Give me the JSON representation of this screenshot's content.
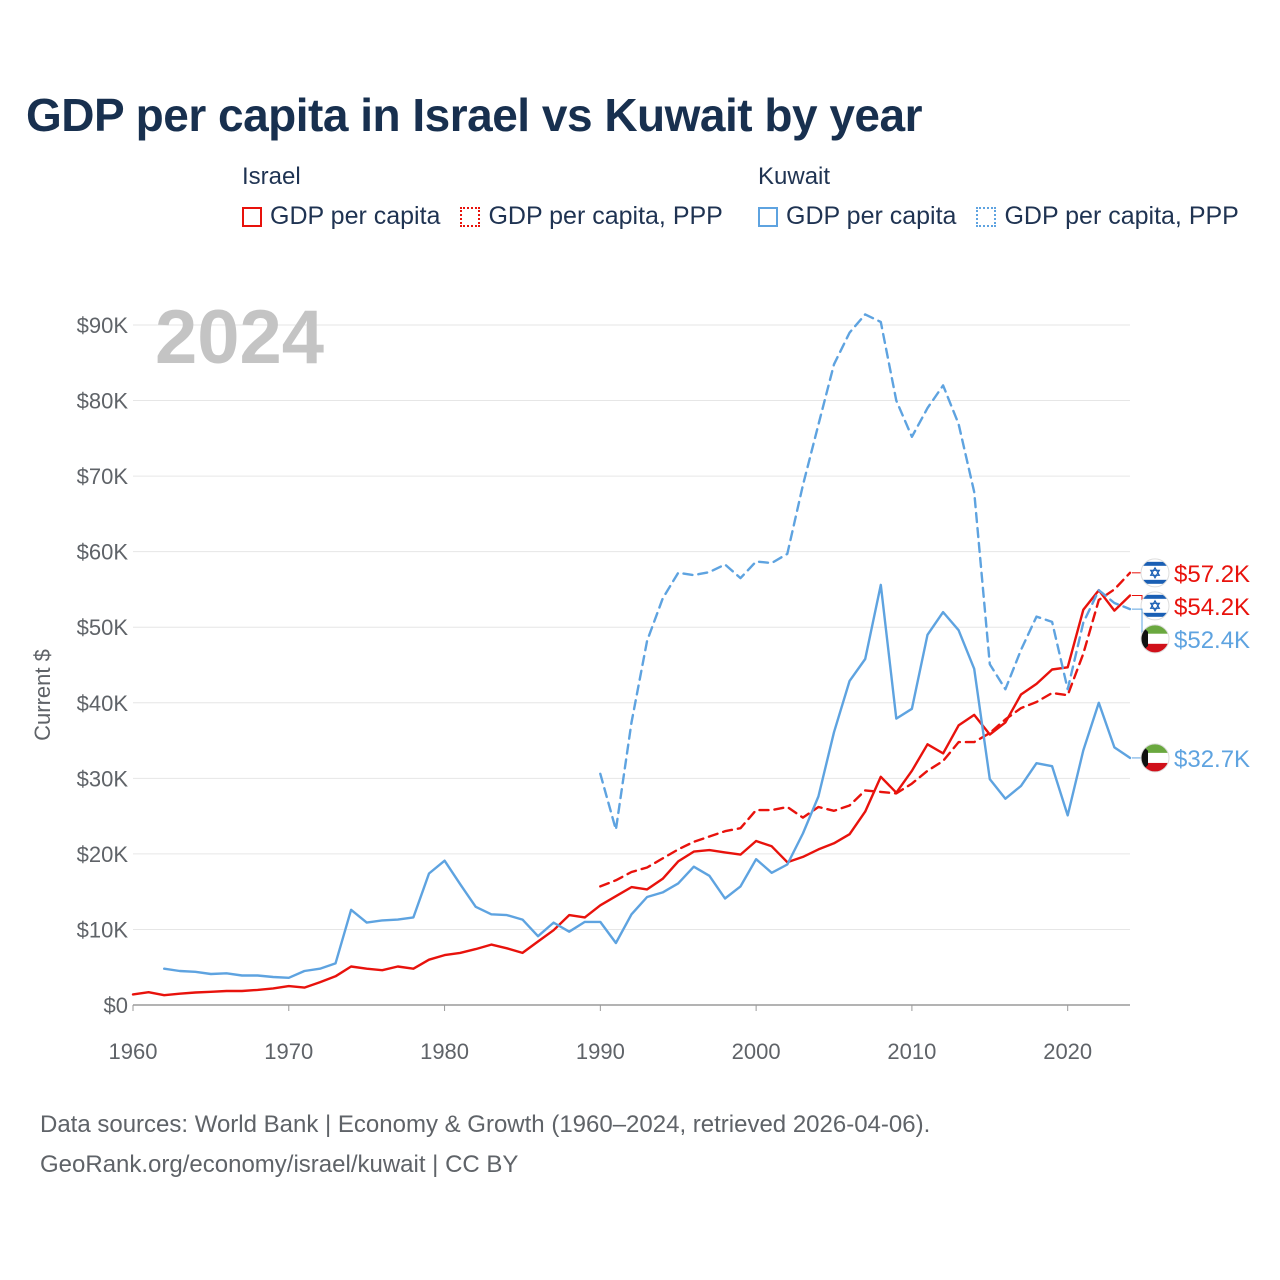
{
  "title": "GDP per capita in Israel vs Kuwait by year",
  "legend": {
    "israel": {
      "title": "Israel",
      "items": [
        {
          "label": "GDP per capita",
          "color": "#e8120c",
          "style": "solid"
        },
        {
          "label": "GDP per capita, PPP",
          "color": "#e8120c",
          "style": "dotted"
        }
      ]
    },
    "kuwait": {
      "title": "Kuwait",
      "items": [
        {
          "label": "GDP per capita",
          "color": "#5ea3e0",
          "style": "solid"
        },
        {
          "label": "GDP per capita, PPP",
          "color": "#5ea3e0",
          "style": "dotted"
        }
      ]
    }
  },
  "footer": {
    "line1": "Data sources: World Bank | Economy & Growth (1960–2024, retrieved 2026-04-06).",
    "line2": "GeoRank.org/economy/israel/kuwait | CC BY"
  },
  "chart_data": {
    "type": "line",
    "year_label": "2024",
    "ylabel": "Current $",
    "xlabel": "",
    "xlim": [
      1960,
      2024
    ],
    "ylim": [
      0,
      90000
    ],
    "x_ticks": [
      "1960",
      "1970",
      "1980",
      "1990",
      "2000",
      "2010",
      "2020"
    ],
    "y_ticks": [
      "$0",
      "$10K",
      "$20K",
      "$30K",
      "$40K",
      "$50K",
      "$60K",
      "$70K",
      "$80K",
      "$90K"
    ],
    "series": [
      {
        "name": "Israel GDP per capita",
        "color": "#e8120c",
        "dashed": false,
        "start_year": 1960,
        "values": [
          1400,
          1700,
          1300,
          1500,
          1650,
          1750,
          1850,
          1850,
          2000,
          2200,
          2500,
          2300,
          3000,
          3800,
          5100,
          4800,
          4600,
          5100,
          4800,
          6000,
          6600,
          6900,
          7400,
          8000,
          7500,
          6900,
          8400,
          9900,
          11900,
          11600,
          13200,
          14400,
          15600,
          15300,
          16700,
          19000,
          20300,
          20500,
          20200,
          19900,
          21700,
          21000,
          18900,
          19600,
          20600,
          21400,
          22600,
          25600,
          30200,
          28100,
          31000,
          34500,
          33300,
          37000,
          38400,
          35800,
          37400,
          41100,
          42500,
          44400,
          44700,
          52300,
          54900,
          52200,
          54200
        ],
        "end_label": "$54.2K",
        "flag": "israel"
      },
      {
        "name": "Israel GDP per capita, PPP",
        "color": "#e8120c",
        "dashed": true,
        "start_year": 1990,
        "values": [
          15700,
          16500,
          17600,
          18200,
          19400,
          20600,
          21600,
          22300,
          23000,
          23400,
          25800,
          25800,
          26200,
          24800,
          26200,
          25700,
          26400,
          28400,
          28200,
          28000,
          29300,
          31000,
          32300,
          34800,
          34800,
          36000,
          37800,
          39300,
          40100,
          41300,
          41000,
          46500,
          53600,
          55000,
          57200
        ],
        "end_label": "$57.2K",
        "flag": "israel"
      },
      {
        "name": "Kuwait GDP per capita",
        "color": "#5ea3e0",
        "dashed": false,
        "start_year": 1962,
        "values": [
          4800,
          4500,
          4400,
          4100,
          4200,
          3900,
          3900,
          3700,
          3600,
          4500,
          4800,
          5500,
          12600,
          10900,
          11200,
          11300,
          11600,
          17400,
          19100,
          16000,
          13000,
          12000,
          11900,
          11300,
          9100,
          10900,
          9700,
          11000,
          11000,
          8200,
          12000,
          14300,
          14900,
          16100,
          18300,
          17100,
          14100,
          15700,
          19300,
          17500,
          18600,
          22700,
          27600,
          36100,
          42900,
          45800,
          55600,
          37900,
          39200,
          49000,
          52000,
          49600,
          44500,
          29900,
          27300,
          29000,
          32000,
          31600,
          25100,
          33700,
          40000,
          34100,
          32700
        ],
        "end_label": "$32.7K",
        "flag": "kuwait"
      },
      {
        "name": "Kuwait GDP per capita, PPP",
        "color": "#5ea3e0",
        "dashed": true,
        "start_year": 1990,
        "values": [
          30600,
          23200,
          37400,
          48200,
          53800,
          57200,
          56900,
          57300,
          58300,
          56500,
          58700,
          58500,
          59700,
          68800,
          76800,
          84800,
          89000,
          91400,
          90400,
          80000,
          75200,
          79000,
          82000,
          76900,
          67900,
          45100,
          41800,
          47000,
          51400,
          50700,
          41800,
          50600,
          54900,
          53200,
          52400
        ],
        "end_label": "$52.4K",
        "flag": "kuwait"
      }
    ]
  }
}
